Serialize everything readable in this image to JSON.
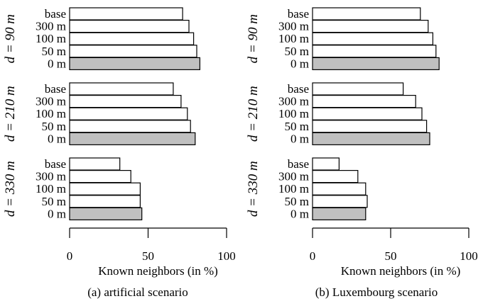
{
  "chart_data": [
    {
      "type": "bar",
      "orientation": "horizontal",
      "caption": "(a) artificial scenario",
      "xlabel": "Known neighbors (in %)",
      "xlim": [
        0,
        100
      ],
      "xticks": [
        "0",
        "50",
        "100"
      ],
      "categories": [
        "base",
        "300 m",
        "100 m",
        "50 m",
        "0 m"
      ],
      "highlight_category": "0 m",
      "colors": {
        "bar": "#ffffff",
        "highlight": "#c0c0c0",
        "edge": "#000000"
      },
      "groups": [
        {
          "label": "d = 90 m",
          "values": [
            72,
            76,
            79,
            81,
            83
          ]
        },
        {
          "label": "d = 210 m",
          "values": [
            66,
            71,
            75,
            77,
            80
          ]
        },
        {
          "label": "d = 330 m",
          "values": [
            32,
            39,
            45,
            45,
            46
          ]
        }
      ]
    },
    {
      "type": "bar",
      "orientation": "horizontal",
      "caption": "(b) Luxembourg scenario",
      "xlabel": "Known neighbors (in %)",
      "xlim": [
        0,
        100
      ],
      "xticks": [
        "0",
        "50",
        "100"
      ],
      "categories": [
        "base",
        "300 m",
        "100 m",
        "50 m",
        "0 m"
      ],
      "highlight_category": "0 m",
      "colors": {
        "bar": "#ffffff",
        "highlight": "#c0c0c0",
        "edge": "#000000"
      },
      "groups": [
        {
          "label": "d = 90 m",
          "values": [
            69,
            74,
            77,
            79,
            81
          ]
        },
        {
          "label": "d = 210 m",
          "values": [
            58,
            66,
            70,
            73,
            75
          ]
        },
        {
          "label": "d = 330 m",
          "values": [
            17,
            29,
            34,
            35,
            34
          ]
        }
      ]
    }
  ]
}
